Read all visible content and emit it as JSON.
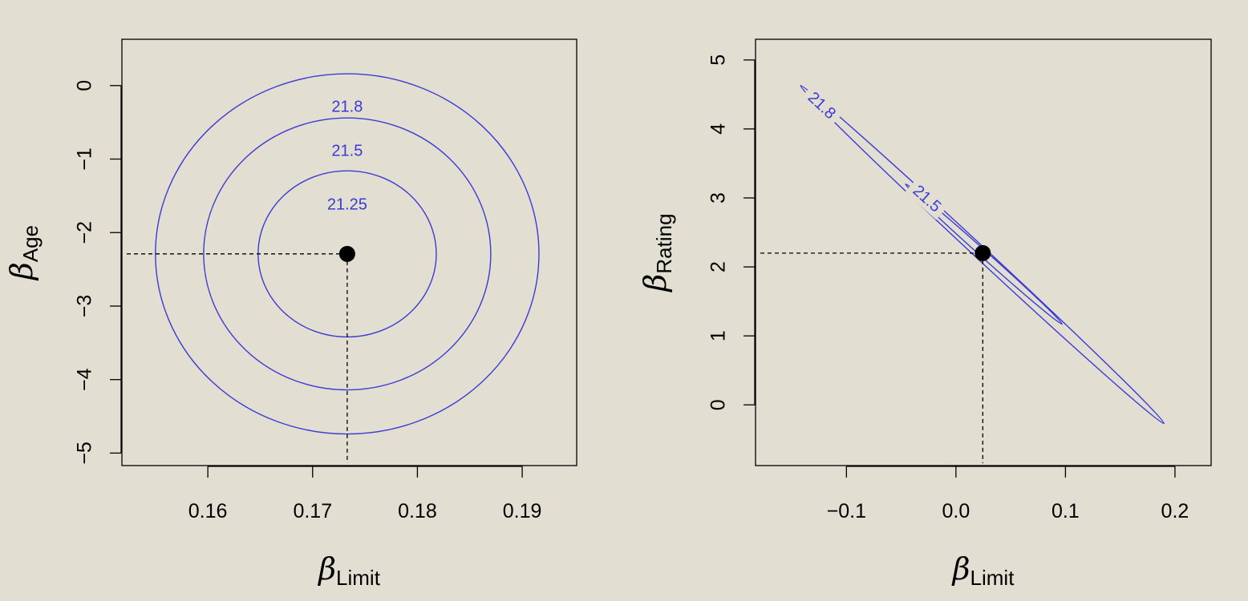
{
  "chart_data": [
    {
      "type": "contour",
      "xlabel": {
        "symbol": "β",
        "subscript": "Limit"
      },
      "ylabel": {
        "symbol": "β",
        "subscript": "Age"
      },
      "xlim": [
        0.1518,
        0.1952
      ],
      "ylim": [
        -5.17,
        0.63
      ],
      "x_ticks": [
        0.16,
        0.17,
        0.18,
        0.19
      ],
      "x_tick_labels": [
        "0.16",
        "0.17",
        "0.18",
        "0.19"
      ],
      "y_ticks": [
        0,
        -1,
        -2,
        -3,
        -4,
        -5
      ],
      "y_tick_labels": [
        "0",
        "−1",
        "−2",
        "−3",
        "−4",
        "−5"
      ],
      "point": {
        "x": 0.1733,
        "y": -2.29
      },
      "contour_color": "#3b3bd4",
      "contours": [
        {
          "level": "21.25",
          "center": [
            0.1733,
            -2.29
          ],
          "angle_deg": 0,
          "semi_x": 0.0085,
          "semi_y": 1.13,
          "label_at": [
            0.1733,
            -1.63
          ]
        },
        {
          "level": "21.5",
          "center": [
            0.1733,
            -2.29
          ],
          "angle_deg": 0,
          "semi_x": 0.0137,
          "semi_y": 1.85,
          "label_at": [
            0.1733,
            -0.9
          ]
        },
        {
          "level": "21.8",
          "center": [
            0.1733,
            -2.29
          ],
          "angle_deg": 0,
          "semi_x": 0.0183,
          "semi_y": 2.45,
          "label_at": [
            0.1733,
            -0.3
          ]
        }
      ]
    },
    {
      "type": "contour",
      "xlabel": {
        "symbol": "β",
        "subscript": "Limit"
      },
      "ylabel": {
        "symbol": "β",
        "subscript": "Rating"
      },
      "xlim": [
        -0.183,
        0.233
      ],
      "ylim": [
        -0.88,
        5.3
      ],
      "x_ticks": [
        -0.1,
        0.0,
        0.1,
        0.2
      ],
      "x_tick_labels": [
        "−0.1",
        "0.0",
        "0.1",
        "0.2"
      ],
      "y_ticks": [
        0,
        1,
        2,
        3,
        4,
        5
      ],
      "y_tick_labels": [
        "0",
        "1",
        "2",
        "3",
        "4",
        "5"
      ],
      "point": {
        "x": 0.0245,
        "y": 2.2
      },
      "contour_color": "#3b3bd4",
      "contours": [
        {
          "level": "21.5",
          "endpoints": [
            [
              -0.046,
              3.2
            ],
            [
              0.097,
              1.17
            ]
          ],
          "half_width": 0.05,
          "label_at": [
            -0.027,
            2.98
          ]
        },
        {
          "level": "21.8",
          "endpoints": [
            [
              -0.142,
              4.63
            ],
            [
              0.19,
              -0.27
            ]
          ],
          "half_width": 0.09,
          "label_at": [
            -0.123,
            4.33
          ]
        }
      ]
    }
  ]
}
